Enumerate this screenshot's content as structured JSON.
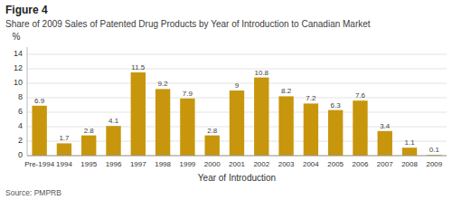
{
  "chart_data": {
    "type": "bar",
    "title": "Figure 4",
    "subtitle": "Share of 2009 Sales of Patented Drug Products by Year of Introduction to Canadian Market",
    "x_label": "Year of Introduction",
    "y_label": "%",
    "annotations": [
      "Source: PMPRB"
    ],
    "categories": [
      "Pre-1994",
      "1994",
      "1995",
      "1996",
      "1997",
      "1998",
      "1999",
      "2000",
      "2001",
      "2002",
      "2003",
      "2004",
      "2005",
      "2006",
      "2007",
      "2008",
      "2009"
    ],
    "values": [
      6.9,
      1.7,
      2.8,
      4.1,
      11.5,
      9.2,
      7.9,
      2.8,
      9.0,
      10.8,
      8.2,
      7.2,
      6.3,
      7.6,
      3.4,
      1.1,
      0.1
    ],
    "color": "#C8960C",
    "ylim": [
      0,
      15
    ],
    "yticks": [
      0,
      2,
      4,
      6,
      8,
      10,
      12,
      14
    ],
    "grid": true,
    "data_labels": true
  }
}
